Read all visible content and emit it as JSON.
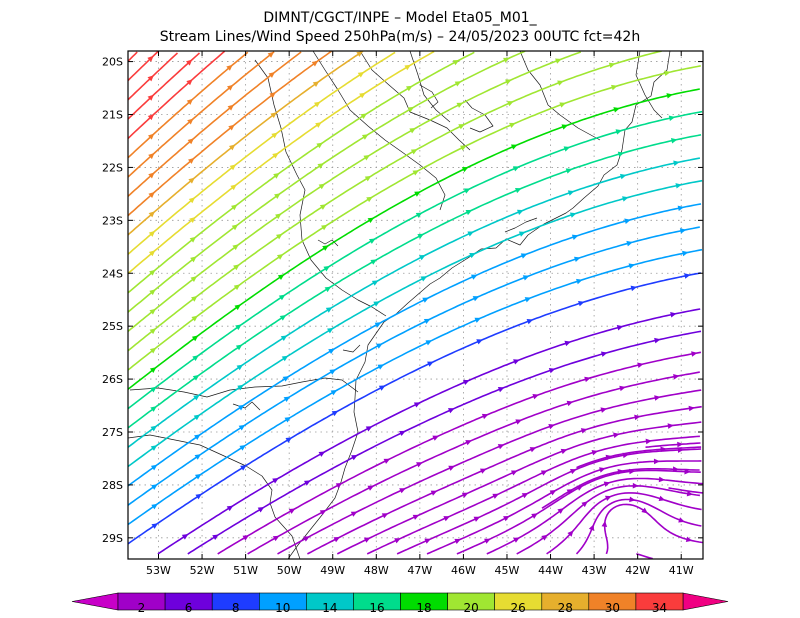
{
  "header": {
    "line1": "DIMNT/CGCT/INPE –  Model Eta05_M01_",
    "line2": "Stream Lines/Wind Speed 250hPa(m/s) –  24/05/2023 00UTC fct=42h"
  },
  "map": {
    "lon_range": [
      -53.7,
      -40.5
    ],
    "lat_range": [
      -29.4,
      -19.8
    ],
    "lon_ticks": [
      {
        "value": -53,
        "label": "53W"
      },
      {
        "value": -52,
        "label": "52W"
      },
      {
        "value": -51,
        "label": "51W"
      },
      {
        "value": -50,
        "label": "50W"
      },
      {
        "value": -49,
        "label": "49W"
      },
      {
        "value": -48,
        "label": "48W"
      },
      {
        "value": -47,
        "label": "47W"
      },
      {
        "value": -46,
        "label": "46W"
      },
      {
        "value": -45,
        "label": "45W"
      },
      {
        "value": -44,
        "label": "44W"
      },
      {
        "value": -43,
        "label": "43W"
      },
      {
        "value": -42,
        "label": "42W"
      },
      {
        "value": -41,
        "label": "41W"
      }
    ],
    "lat_ticks": [
      {
        "value": -20,
        "label": "20S"
      },
      {
        "value": -21,
        "label": "21S"
      },
      {
        "value": -22,
        "label": "22S"
      },
      {
        "value": -23,
        "label": "23S"
      },
      {
        "value": -24,
        "label": "24S"
      },
      {
        "value": -25,
        "label": "25S"
      },
      {
        "value": -26,
        "label": "26S"
      },
      {
        "value": -27,
        "label": "27S"
      },
      {
        "value": -28,
        "label": "28S"
      },
      {
        "value": -29,
        "label": "29S"
      }
    ],
    "grid": "dotted"
  },
  "colorbar": {
    "boundaries": [
      "2",
      "6",
      "8",
      "10",
      "14",
      "16",
      "18",
      "20",
      "26",
      "28",
      "30",
      "34"
    ],
    "colors": [
      "#a000c8",
      "#6e00dc",
      "#1e3cff",
      "#00a0ff",
      "#00c8c8",
      "#00dc8c",
      "#00dc00",
      "#a0e632",
      "#e6dc32",
      "#e6af2d",
      "#f08228",
      "#fa3c3c"
    ],
    "under_color": "#c800c8",
    "over_color": "#f00082"
  }
}
